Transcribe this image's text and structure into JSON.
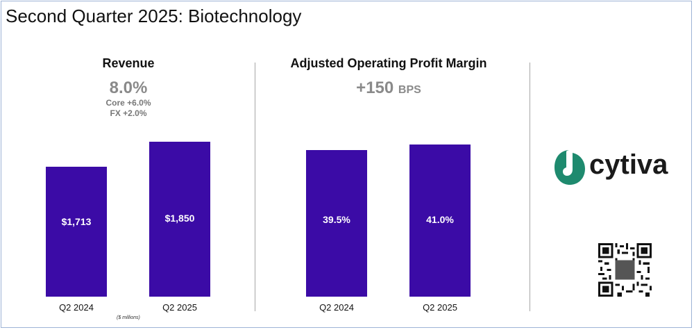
{
  "title": "Second Quarter 2025: Biotechnology",
  "colors": {
    "bar": "#3b0ba6",
    "logo_green": "#1e8a6e",
    "accent_gray": "#8a8a8a"
  },
  "revenue": {
    "heading": "Revenue",
    "change": "8.0%",
    "core": "Core +6.0%",
    "fx": "FX +2.0%",
    "note": "($ millions)"
  },
  "margin": {
    "heading": "Adjusted Operating Profit Margin",
    "change_value": "+150",
    "change_unit": "BPS"
  },
  "logo": {
    "name": "cytiva",
    "icon": "cytiva-leaf-icon"
  },
  "qr": {
    "icon": "qr-code-icon"
  },
  "chart_data": [
    {
      "type": "bar",
      "title": "Revenue",
      "categories": [
        "Q2 2024",
        "Q2 2025"
      ],
      "values": [
        1713,
        1850
      ],
      "value_labels": [
        "$1,713",
        "$1,850"
      ],
      "ylabel": "($ millions)",
      "grid": false
    },
    {
      "type": "bar",
      "title": "Adjusted Operating Profit Margin",
      "categories": [
        "Q2 2024",
        "Q2 2025"
      ],
      "values": [
        39.5,
        41.0
      ],
      "value_labels": [
        "39.5%",
        "41.0%"
      ],
      "grid": false
    }
  ]
}
